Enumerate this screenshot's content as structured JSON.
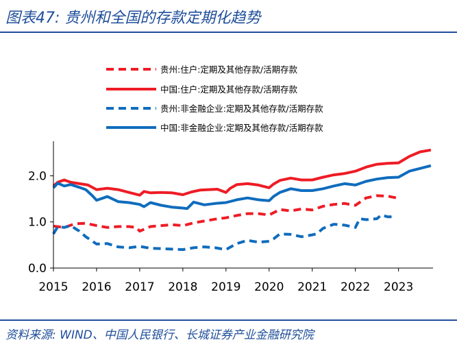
{
  "figure": {
    "title": "图表47:  贵州和全国的存款定期化趋势",
    "source": "资料来源:  WIND、中国人民银行、长城证券产业金融研究院"
  },
  "colors": {
    "red": "#ee1c25",
    "blue": "#0f6cbd",
    "axis": "#000000",
    "title": "#1f4e9a"
  },
  "chart_data": {
    "type": "line",
    "title": "",
    "xlabel": "",
    "ylabel": "",
    "xlim": [
      2015.0,
      2023.8
    ],
    "ylim": [
      0.0,
      2.75
    ],
    "x_ticks": [
      2015,
      2016,
      2017,
      2018,
      2019,
      2020,
      2021,
      2022,
      2023
    ],
    "x_tick_labels": [
      "2015",
      "2016",
      "2017",
      "2018",
      "2019",
      "2020",
      "2021",
      "2022",
      "2023"
    ],
    "y_ticks": [
      0.0,
      1.0,
      2.0
    ],
    "y_tick_labels": [
      "0.0",
      "1.0",
      "2.0"
    ],
    "grid": false,
    "legend_position": "top-right",
    "series": [
      {
        "name": "贵州:住户:定期及其他存款/活期存款",
        "color": "#ee1c25",
        "style": "dashed",
        "x": [
          2015.0,
          2015.25,
          2015.5,
          2015.75,
          2016.0,
          2016.25,
          2016.5,
          2016.75,
          2016.92,
          2017.0,
          2017.25,
          2017.5,
          2017.75,
          2018.0,
          2018.25,
          2018.5,
          2018.75,
          2019.0,
          2019.25,
          2019.5,
          2019.75,
          2020.0,
          2020.25,
          2020.5,
          2020.75,
          2021.0,
          2021.25,
          2021.5,
          2021.75,
          2022.0,
          2022.25,
          2022.5,
          2022.75,
          2022.95
        ],
        "y": [
          0.91,
          0.88,
          0.96,
          0.97,
          0.92,
          0.88,
          0.9,
          0.9,
          0.88,
          0.8,
          0.9,
          0.92,
          0.94,
          0.92,
          0.98,
          1.02,
          1.06,
          1.09,
          1.14,
          1.18,
          1.18,
          1.15,
          1.27,
          1.24,
          1.28,
          1.26,
          1.34,
          1.38,
          1.4,
          1.36,
          1.52,
          1.57,
          1.56,
          1.52
        ]
      },
      {
        "name": "中国:住户:定期及其他存款/活期存款",
        "color": "#ee1c25",
        "style": "solid",
        "x": [
          2015.0,
          2015.1,
          2015.25,
          2015.4,
          2015.6,
          2015.8,
          2016.0,
          2016.25,
          2016.5,
          2016.75,
          2017.0,
          2017.1,
          2017.25,
          2017.5,
          2017.75,
          2018.0,
          2018.2,
          2018.4,
          2018.6,
          2018.8,
          2019.0,
          2019.1,
          2019.25,
          2019.5,
          2019.75,
          2020.0,
          2020.1,
          2020.25,
          2020.5,
          2020.75,
          2021.0,
          2021.25,
          2021.5,
          2021.75,
          2022.0,
          2022.25,
          2022.5,
          2022.75,
          2023.0,
          2023.25,
          2023.5,
          2023.75
        ],
        "y": [
          1.78,
          1.86,
          1.91,
          1.86,
          1.83,
          1.8,
          1.7,
          1.73,
          1.7,
          1.64,
          1.58,
          1.66,
          1.63,
          1.64,
          1.63,
          1.59,
          1.65,
          1.69,
          1.7,
          1.71,
          1.64,
          1.73,
          1.81,
          1.83,
          1.8,
          1.74,
          1.82,
          1.9,
          1.95,
          1.91,
          1.91,
          1.97,
          2.02,
          2.05,
          2.1,
          2.19,
          2.25,
          2.27,
          2.28,
          2.42,
          2.52,
          2.56
        ]
      },
      {
        "name": "贵州:非金融企业:定期及其他存款/活期存款",
        "color": "#0f6cbd",
        "style": "dashed",
        "x": [
          2015.0,
          2015.1,
          2015.25,
          2015.4,
          2015.6,
          2015.75,
          2016.0,
          2016.25,
          2016.5,
          2016.75,
          2017.0,
          2017.25,
          2017.5,
          2017.75,
          2018.0,
          2018.25,
          2018.5,
          2018.75,
          2019.0,
          2019.25,
          2019.5,
          2019.75,
          2020.0,
          2020.1,
          2020.25,
          2020.5,
          2020.75,
          2021.0,
          2021.1,
          2021.25,
          2021.5,
          2021.75,
          2022.0,
          2022.1,
          2022.25,
          2022.5,
          2022.6,
          2022.75,
          2022.95
        ],
        "y": [
          0.74,
          0.9,
          0.88,
          0.92,
          0.8,
          0.68,
          0.52,
          0.53,
          0.46,
          0.44,
          0.47,
          0.43,
          0.42,
          0.41,
          0.4,
          0.44,
          0.46,
          0.44,
          0.4,
          0.53,
          0.6,
          0.56,
          0.58,
          0.63,
          0.74,
          0.73,
          0.68,
          0.72,
          0.74,
          0.86,
          0.95,
          0.93,
          0.88,
          1.07,
          1.05,
          1.07,
          1.15,
          1.11,
          1.11
        ]
      },
      {
        "name": "中国:非金融企业:定期及其他存款/活期存款",
        "color": "#0f6cbd",
        "style": "solid",
        "x": [
          2015.0,
          2015.1,
          2015.25,
          2015.4,
          2015.6,
          2015.75,
          2015.9,
          2016.0,
          2016.25,
          2016.5,
          2016.75,
          2017.0,
          2017.1,
          2017.25,
          2017.5,
          2017.75,
          2018.0,
          2018.1,
          2018.25,
          2018.5,
          2018.75,
          2019.0,
          2019.25,
          2019.5,
          2019.75,
          2020.0,
          2020.1,
          2020.25,
          2020.5,
          2020.75,
          2021.0,
          2021.25,
          2021.5,
          2021.75,
          2022.0,
          2022.25,
          2022.5,
          2022.75,
          2023.0,
          2023.25,
          2023.5,
          2023.75
        ],
        "y": [
          1.74,
          1.84,
          1.78,
          1.81,
          1.75,
          1.7,
          1.57,
          1.47,
          1.55,
          1.44,
          1.42,
          1.38,
          1.33,
          1.42,
          1.36,
          1.32,
          1.3,
          1.29,
          1.43,
          1.37,
          1.4,
          1.42,
          1.48,
          1.52,
          1.48,
          1.46,
          1.55,
          1.64,
          1.72,
          1.68,
          1.68,
          1.72,
          1.78,
          1.83,
          1.8,
          1.88,
          1.93,
          1.96,
          1.97,
          2.1,
          2.16,
          2.22
        ]
      }
    ]
  }
}
